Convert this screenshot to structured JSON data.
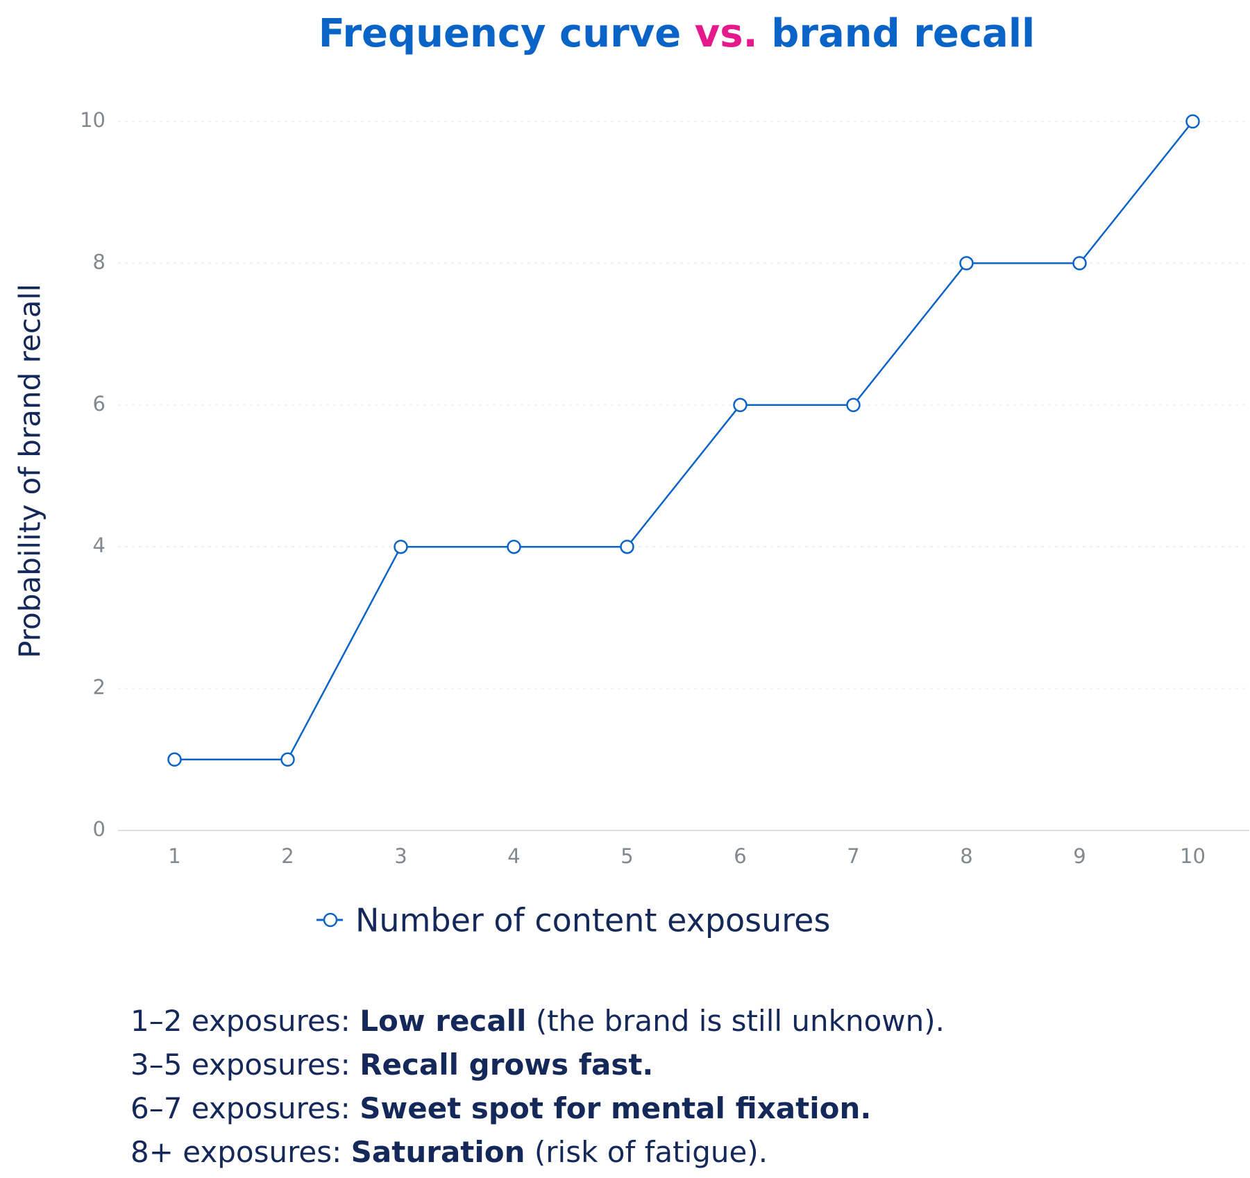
{
  "chart_data": {
    "type": "line",
    "title": [
      "Frequency curve ",
      "vs.",
      " brand recall"
    ],
    "title_colors": [
      "#0a64c8",
      "#e6198c",
      "#0a64c8"
    ],
    "y_label": "Probability of brand recall",
    "categories": [
      "1",
      "2",
      "3",
      "4",
      "5",
      "6",
      "7",
      "8",
      "9",
      "10"
    ],
    "series": [
      {
        "name": "Number of content exposures",
        "color": "#0a64c8",
        "values": [
          1,
          1,
          4,
          4,
          4,
          6,
          6,
          8,
          8,
          10
        ]
      }
    ],
    "ylim": [
      0,
      10
    ],
    "yticks": [
      0,
      2,
      4,
      6,
      8,
      10
    ],
    "grid": true,
    "notes": [
      {
        "prefix": "1–2 exposures: ",
        "bold": "Low recall",
        "suffix": " (the brand is still unknown)."
      },
      {
        "prefix": "3–5 exposures: ",
        "bold": "Recall grows fast."
      },
      {
        "prefix": "6–7 exposures: ",
        "bold": "Sweet spot for mental fixation."
      },
      {
        "prefix": "8+ exposures: ",
        "bold": "Saturation",
        "suffix": " (risk of fatigue)."
      }
    ]
  }
}
